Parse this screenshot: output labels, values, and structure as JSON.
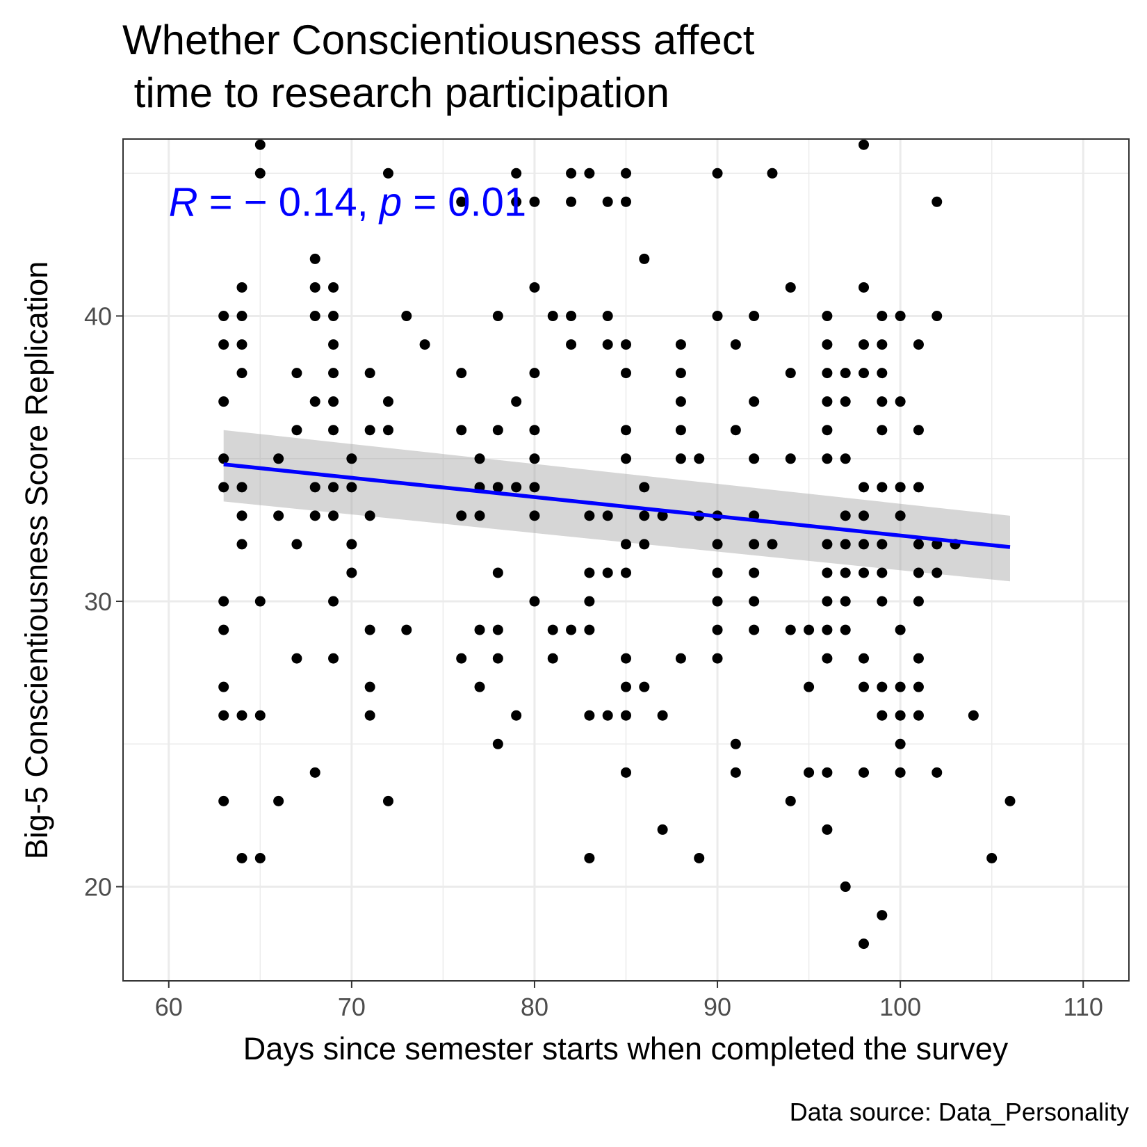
{
  "chart_data": {
    "type": "scatter",
    "title_line1": "Whether Conscientiousness affect",
    "title_line2": " time to research participation",
    "xlabel": "Days since semester starts when completed the survey",
    "ylabel": "Big-5 Conscientiousness Score Replication",
    "caption": "Data source: Data_Personality",
    "xlim": [
      57.5,
      112.5
    ],
    "ylim": [
      16.7,
      46.2
    ],
    "x_ticks": [
      60,
      70,
      80,
      90,
      100,
      110
    ],
    "y_ticks": [
      20,
      30,
      40
    ],
    "x_tick_labels": [
      "60",
      "70",
      "80",
      "90",
      "100",
      "110"
    ],
    "y_tick_labels": [
      "20",
      "30",
      "40"
    ],
    "grid": true,
    "legend": "none",
    "annotation": {
      "r_symbol": "R",
      "r_text": " = − 0.14, ",
      "p_symbol": "p",
      "p_text": " = 0.01",
      "x": 60,
      "y": 44,
      "color": "#0000ff"
    },
    "regression": {
      "x": [
        63,
        106
      ],
      "y": [
        34.8,
        31.9
      ],
      "ci_upper": [
        36.0,
        33.0
      ],
      "ci_lower": [
        33.5,
        30.7
      ],
      "line_color": "#0000ff",
      "ci_color": "#999999"
    },
    "point_color": "#000000",
    "points": [
      [
        63,
        40
      ],
      [
        63,
        39
      ],
      [
        63,
        37
      ],
      [
        63,
        35
      ],
      [
        63,
        34
      ],
      [
        63,
        30
      ],
      [
        63,
        29
      ],
      [
        63,
        27
      ],
      [
        63,
        26
      ],
      [
        63,
        23
      ],
      [
        64,
        41
      ],
      [
        64,
        40
      ],
      [
        64,
        39
      ],
      [
        64,
        38
      ],
      [
        64,
        34
      ],
      [
        64,
        33
      ],
      [
        64,
        32
      ],
      [
        64,
        26
      ],
      [
        64,
        21
      ],
      [
        65,
        46
      ],
      [
        65,
        45
      ],
      [
        65,
        30
      ],
      [
        65,
        26
      ],
      [
        65,
        21
      ],
      [
        66,
        35
      ],
      [
        66,
        33
      ],
      [
        66,
        23
      ],
      [
        67,
        38
      ],
      [
        67,
        36
      ],
      [
        67,
        32
      ],
      [
        67,
        28
      ],
      [
        68,
        42
      ],
      [
        68,
        41
      ],
      [
        68,
        40
      ],
      [
        68,
        37
      ],
      [
        68,
        34
      ],
      [
        68,
        33
      ],
      [
        68,
        24
      ],
      [
        69,
        41
      ],
      [
        69,
        40
      ],
      [
        69,
        39
      ],
      [
        69,
        38
      ],
      [
        69,
        37
      ],
      [
        69,
        36
      ],
      [
        69,
        34
      ],
      [
        69,
        33
      ],
      [
        69,
        30
      ],
      [
        69,
        28
      ],
      [
        70,
        35
      ],
      [
        70,
        34
      ],
      [
        70,
        32
      ],
      [
        70,
        31
      ],
      [
        71,
        38
      ],
      [
        71,
        36
      ],
      [
        71,
        33
      ],
      [
        71,
        29
      ],
      [
        71,
        27
      ],
      [
        71,
        26
      ],
      [
        72,
        45
      ],
      [
        72,
        37
      ],
      [
        72,
        36
      ],
      [
        72,
        23
      ],
      [
        73,
        40
      ],
      [
        73,
        29
      ],
      [
        74,
        39
      ],
      [
        76,
        44
      ],
      [
        76,
        38
      ],
      [
        76,
        36
      ],
      [
        76,
        33
      ],
      [
        76,
        28
      ],
      [
        77,
        35
      ],
      [
        77,
        34
      ],
      [
        77,
        33
      ],
      [
        77,
        29
      ],
      [
        77,
        27
      ],
      [
        78,
        40
      ],
      [
        78,
        36
      ],
      [
        78,
        34
      ],
      [
        78,
        31
      ],
      [
        78,
        29
      ],
      [
        78,
        28
      ],
      [
        78,
        25
      ],
      [
        79,
        45
      ],
      [
        79,
        44
      ],
      [
        79,
        37
      ],
      [
        79,
        34
      ],
      [
        79,
        26
      ],
      [
        80,
        44
      ],
      [
        80,
        41
      ],
      [
        80,
        38
      ],
      [
        80,
        36
      ],
      [
        80,
        35
      ],
      [
        80,
        34
      ],
      [
        80,
        33
      ],
      [
        80,
        30
      ],
      [
        81,
        40
      ],
      [
        81,
        29
      ],
      [
        81,
        28
      ],
      [
        82,
        45
      ],
      [
        82,
        44
      ],
      [
        82,
        40
      ],
      [
        82,
        39
      ],
      [
        82,
        29
      ],
      [
        83,
        45
      ],
      [
        83,
        33
      ],
      [
        83,
        31
      ],
      [
        83,
        30
      ],
      [
        83,
        29
      ],
      [
        83,
        26
      ],
      [
        83,
        21
      ],
      [
        84,
        44
      ],
      [
        84,
        40
      ],
      [
        84,
        39
      ],
      [
        84,
        33
      ],
      [
        84,
        31
      ],
      [
        84,
        26
      ],
      [
        85,
        45
      ],
      [
        85,
        44
      ],
      [
        85,
        39
      ],
      [
        85,
        38
      ],
      [
        85,
        36
      ],
      [
        85,
        35
      ],
      [
        85,
        32
      ],
      [
        85,
        31
      ],
      [
        85,
        28
      ],
      [
        85,
        27
      ],
      [
        85,
        26
      ],
      [
        85,
        24
      ],
      [
        86,
        42
      ],
      [
        86,
        34
      ],
      [
        86,
        33
      ],
      [
        86,
        32
      ],
      [
        86,
        27
      ],
      [
        87,
        33
      ],
      [
        87,
        26
      ],
      [
        87,
        22
      ],
      [
        88,
        39
      ],
      [
        88,
        38
      ],
      [
        88,
        37
      ],
      [
        88,
        36
      ],
      [
        88,
        35
      ],
      [
        88,
        28
      ],
      [
        89,
        35
      ],
      [
        89,
        33
      ],
      [
        89,
        21
      ],
      [
        90,
        45
      ],
      [
        90,
        40
      ],
      [
        90,
        33
      ],
      [
        90,
        32
      ],
      [
        90,
        31
      ],
      [
        90,
        30
      ],
      [
        90,
        29
      ],
      [
        90,
        28
      ],
      [
        91,
        39
      ],
      [
        91,
        36
      ],
      [
        91,
        25
      ],
      [
        91,
        24
      ],
      [
        92,
        40
      ],
      [
        92,
        37
      ],
      [
        92,
        35
      ],
      [
        92,
        33
      ],
      [
        92,
        32
      ],
      [
        92,
        31
      ],
      [
        92,
        30
      ],
      [
        92,
        29
      ],
      [
        93,
        45
      ],
      [
        93,
        32
      ],
      [
        94,
        41
      ],
      [
        94,
        38
      ],
      [
        94,
        35
      ],
      [
        94,
        29
      ],
      [
        94,
        23
      ],
      [
        95,
        29
      ],
      [
        95,
        27
      ],
      [
        95,
        24
      ],
      [
        96,
        40
      ],
      [
        96,
        39
      ],
      [
        96,
        38
      ],
      [
        96,
        37
      ],
      [
        96,
        36
      ],
      [
        96,
        35
      ],
      [
        96,
        32
      ],
      [
        96,
        31
      ],
      [
        96,
        30
      ],
      [
        96,
        29
      ],
      [
        96,
        28
      ],
      [
        96,
        24
      ],
      [
        96,
        22
      ],
      [
        97,
        38
      ],
      [
        97,
        37
      ],
      [
        97,
        35
      ],
      [
        97,
        33
      ],
      [
        97,
        32
      ],
      [
        97,
        31
      ],
      [
        97,
        30
      ],
      [
        97,
        29
      ],
      [
        97,
        20
      ],
      [
        98,
        46
      ],
      [
        98,
        41
      ],
      [
        98,
        39
      ],
      [
        98,
        38
      ],
      [
        98,
        34
      ],
      [
        98,
        33
      ],
      [
        98,
        32
      ],
      [
        98,
        31
      ],
      [
        98,
        28
      ],
      [
        98,
        27
      ],
      [
        98,
        24
      ],
      [
        98,
        18
      ],
      [
        99,
        40
      ],
      [
        99,
        39
      ],
      [
        99,
        38
      ],
      [
        99,
        37
      ],
      [
        99,
        36
      ],
      [
        99,
        34
      ],
      [
        99,
        32
      ],
      [
        99,
        31
      ],
      [
        99,
        30
      ],
      [
        99,
        27
      ],
      [
        99,
        26
      ],
      [
        99,
        19
      ],
      [
        100,
        40
      ],
      [
        100,
        37
      ],
      [
        100,
        34
      ],
      [
        100,
        33
      ],
      [
        100,
        29
      ],
      [
        100,
        27
      ],
      [
        100,
        26
      ],
      [
        100,
        25
      ],
      [
        100,
        24
      ],
      [
        101,
        39
      ],
      [
        101,
        36
      ],
      [
        101,
        34
      ],
      [
        101,
        32
      ],
      [
        101,
        31
      ],
      [
        101,
        30
      ],
      [
        101,
        28
      ],
      [
        101,
        27
      ],
      [
        101,
        26
      ],
      [
        102,
        44
      ],
      [
        102,
        40
      ],
      [
        102,
        32
      ],
      [
        102,
        31
      ],
      [
        102,
        24
      ],
      [
        103,
        32
      ],
      [
        104,
        26
      ],
      [
        105,
        21
      ],
      [
        106,
        23
      ]
    ]
  }
}
